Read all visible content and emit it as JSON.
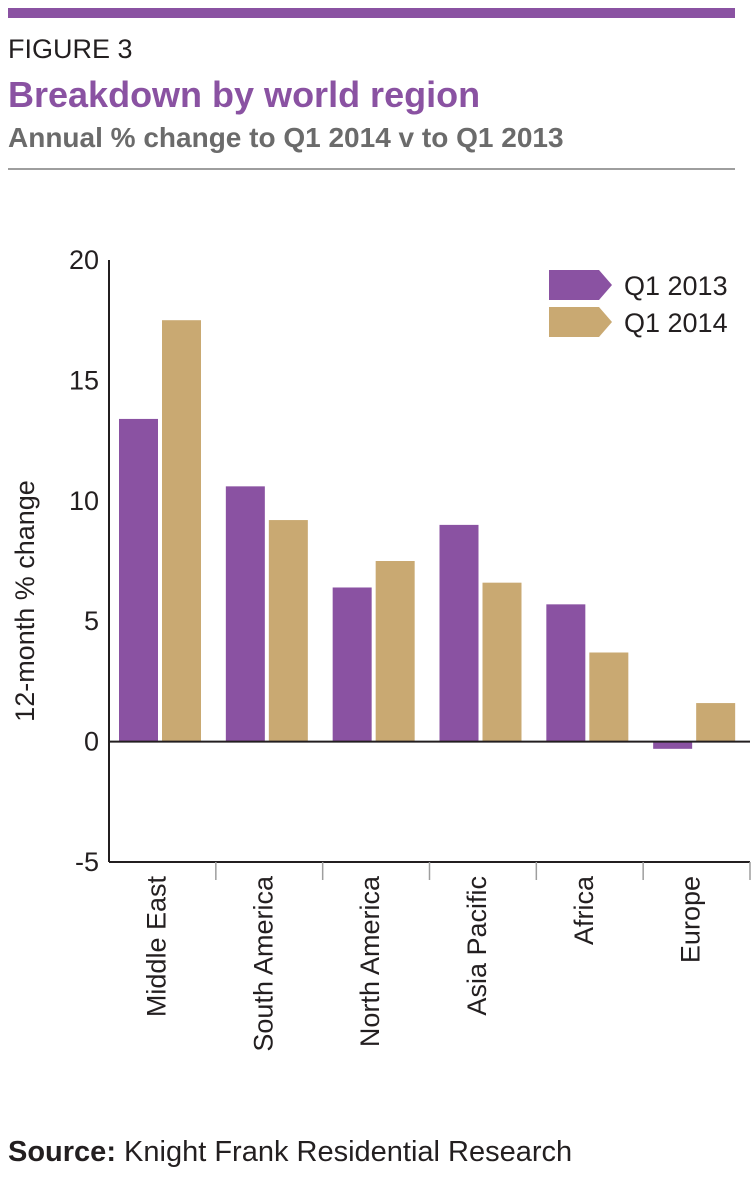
{
  "header": {
    "figure_label": "FIGURE 3",
    "title": "Breakdown by world region",
    "subtitle": "Annual % change to Q1 2014 v to Q1 2013"
  },
  "source": {
    "label": "Source:",
    "text": "Knight Frank Residential Research"
  },
  "colors": {
    "accent": "#8a52a2",
    "q1_2013": "#8a52a2",
    "q1_2014": "#c9a972",
    "subtitle": "#6b6b6b"
  },
  "chart_data": {
    "type": "bar",
    "ylabel": "12-month % change",
    "xlabel": "",
    "ylim": [
      -5,
      20
    ],
    "yticks": [
      20,
      15,
      10,
      5,
      0,
      -5
    ],
    "grid": false,
    "legend_position": "top-right",
    "categories": [
      "Middle East",
      "South America",
      "North America",
      "Asia Pacific",
      "Africa",
      "Europe"
    ],
    "series": [
      {
        "name": "Q1 2013",
        "color": "#8a52a2",
        "values": [
          13.4,
          10.6,
          6.4,
          9.0,
          5.7,
          -0.3
        ]
      },
      {
        "name": "Q1 2014",
        "color": "#c9a972",
        "values": [
          17.5,
          9.2,
          7.5,
          6.6,
          3.7,
          1.6
        ]
      }
    ]
  }
}
